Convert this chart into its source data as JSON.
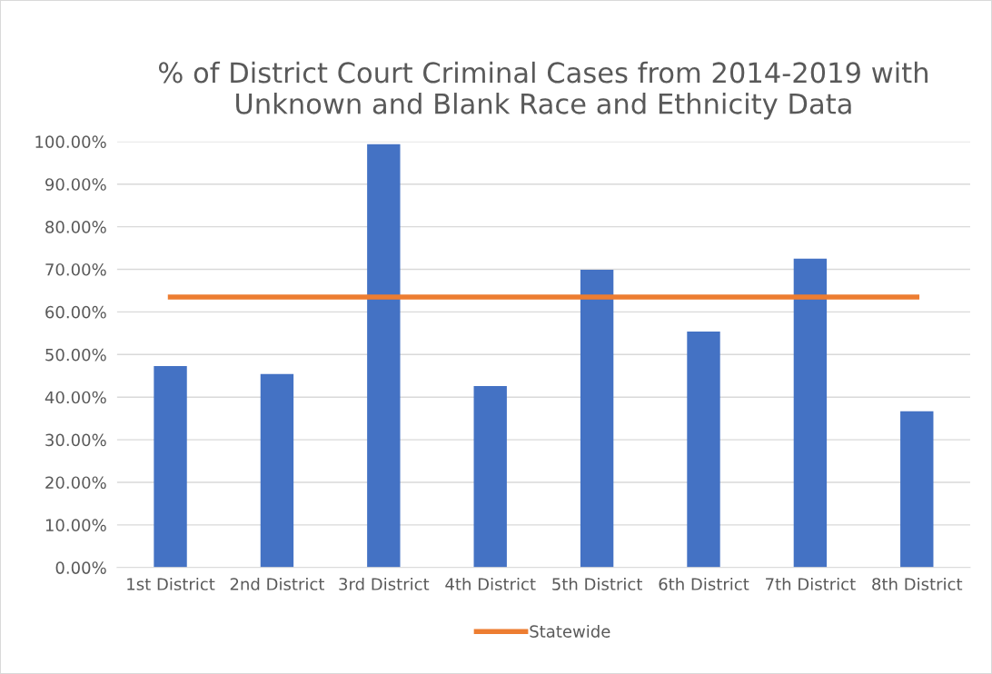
{
  "chart_data": {
    "type": "bar",
    "title": "% of District Court Criminal Cases from 2014-2019 with\nUnknown and Blank Race and Ethnicity Data",
    "categories": [
      "1st District",
      "2nd District",
      "3rd District",
      "4th District",
      "5th District",
      "6th District",
      "7th District",
      "8th District"
    ],
    "series": [
      {
        "color": "#4472c4",
        "values": [
          47.3,
          45.4,
          99.4,
          42.6,
          69.9,
          55.4,
          72.5,
          36.7
        ]
      },
      {
        "type": "line",
        "name": "Statewide",
        "color": "#ed7d31",
        "values": [
          63.5,
          63.5,
          63.5,
          63.5,
          63.5,
          63.5,
          63.5,
          63.5
        ]
      }
    ],
    "ylim": [
      0,
      100
    ],
    "yticks": [
      {
        "value": 0,
        "label": "0.00%"
      },
      {
        "value": 10,
        "label": "10.00%"
      },
      {
        "value": 20,
        "label": "20.00%"
      },
      {
        "value": 30,
        "label": "30.00%"
      },
      {
        "value": 40,
        "label": "40.00%"
      },
      {
        "value": 50,
        "label": "50.00%"
      },
      {
        "value": 60,
        "label": "60.00%"
      },
      {
        "value": 70,
        "label": "70.00%"
      },
      {
        "value": 80,
        "label": "80.00%"
      },
      {
        "value": 90,
        "label": "90.00%"
      },
      {
        "value": 100,
        "label": "100.00%"
      }
    ],
    "grid": "y",
    "legend": "bottom",
    "marker": "none"
  }
}
